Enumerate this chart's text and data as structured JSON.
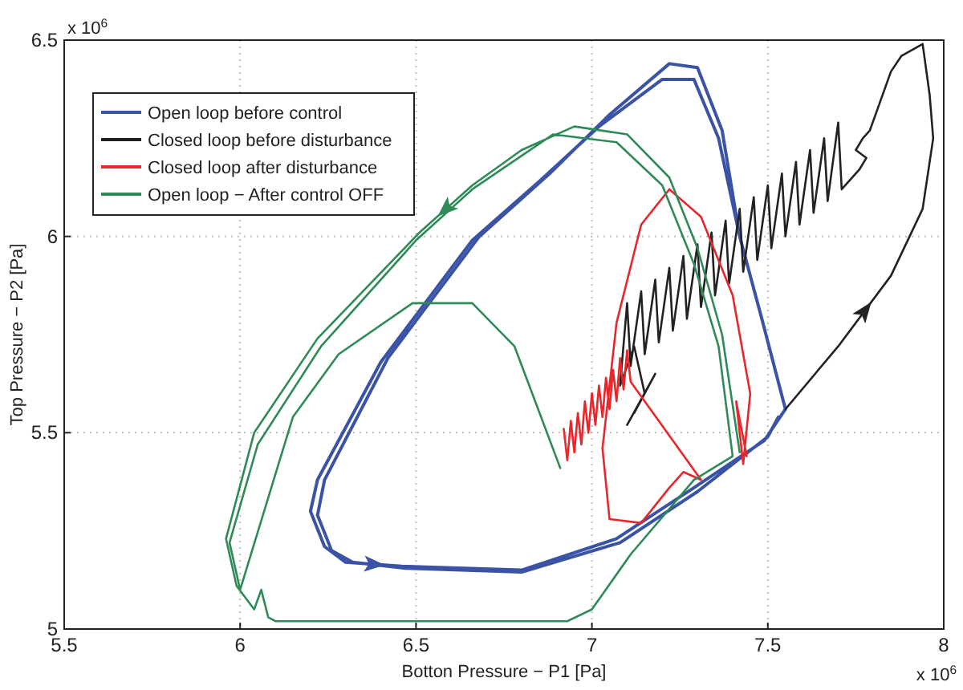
{
  "chart_data": {
    "type": "line",
    "xlabel": "Botton Pressure − P1 [Pa]",
    "ylabel": "Top Pressure − P2 [Pa]",
    "annotations": [
      "x 10$^{6}$",
      "x 10$^{6}$"
    ],
    "xlim": [
      5.5,
      8
    ],
    "xticks": [
      5.5,
      6,
      6.5,
      7,
      7.5,
      8
    ],
    "ylim": [
      5,
      6.5
    ],
    "yticks": [
      5,
      5.5,
      6,
      6.5
    ],
    "grid": true,
    "legend": "top left",
    "marker": "none",
    "line_style": "solid",
    "series": [
      {
        "name": "Open loop before control",
        "color": "#3a53a4",
        "x": [
          7.55,
          7.48,
          7.42,
          7.36,
          7.29,
          7.2,
          7.02,
          6.85,
          6.66,
          6.4,
          6.22,
          6.2,
          6.24,
          6.3,
          6.46,
          6.8,
          7.07,
          7.29,
          7.49,
          7.55,
          7.48,
          7.42,
          7.37,
          7.3,
          7.22,
          7.05,
          6.88,
          6.68,
          6.42,
          6.24,
          6.22,
          6.26,
          6.32,
          6.47,
          6.8,
          7.08,
          7.3,
          7.5,
          7.53
        ],
        "values": [
          5.56,
          5.8,
          6.0,
          6.25,
          6.4,
          6.4,
          6.28,
          6.14,
          5.99,
          5.68,
          5.38,
          5.3,
          5.21,
          5.17,
          5.16,
          5.15,
          5.23,
          5.36,
          5.48,
          5.56,
          5.8,
          6.0,
          6.27,
          6.43,
          6.44,
          6.31,
          6.16,
          6.0,
          5.69,
          5.38,
          5.29,
          5.2,
          5.17,
          5.155,
          5.145,
          5.22,
          5.35,
          5.49,
          5.54
        ]
      },
      {
        "name": "Closed loop before disturbance",
        "color": "#222222",
        "x": [
          7.55,
          7.7,
          7.85,
          7.94,
          7.97,
          7.96,
          7.94,
          7.88,
          7.85,
          7.81,
          7.79,
          7.77,
          7.75,
          7.78,
          7.76,
          7.71,
          7.7,
          7.67,
          7.66,
          7.63,
          7.62,
          7.59,
          7.58,
          7.55,
          7.54,
          7.51,
          7.5,
          7.47,
          7.46,
          7.43,
          7.42,
          7.39,
          7.38,
          7.35,
          7.34,
          7.31,
          7.3,
          7.27,
          7.26,
          7.23,
          7.22,
          7.19,
          7.18,
          7.15,
          7.14,
          7.11,
          7.1,
          7.08,
          7.12,
          7.15,
          7.1,
          7.18,
          7.12
        ],
        "values": [
          5.56,
          5.72,
          5.9,
          6.07,
          6.25,
          6.36,
          6.49,
          6.46,
          6.42,
          6.32,
          6.27,
          6.25,
          6.22,
          6.2,
          6.17,
          6.12,
          6.29,
          6.09,
          6.25,
          6.06,
          6.22,
          6.03,
          6.19,
          6.0,
          6.16,
          5.97,
          6.13,
          5.94,
          6.1,
          5.91,
          6.07,
          5.88,
          6.04,
          5.85,
          6.01,
          5.82,
          5.98,
          5.79,
          5.95,
          5.76,
          5.92,
          5.73,
          5.89,
          5.7,
          5.86,
          5.67,
          5.83,
          5.62,
          5.72,
          5.6,
          5.52,
          5.65,
          5.55
        ]
      },
      {
        "name": "Closed loop after disturbance",
        "color": "#e8262b",
        "x": [
          7.44,
          7.41,
          7.43,
          7.45,
          7.4,
          7.31,
          7.22,
          7.14,
          7.07,
          7.03,
          7.05,
          7.14,
          7.22,
          7.26,
          7.31,
          7.11,
          7.1,
          7.09,
          7.08,
          7.07,
          7.06,
          7.05,
          7.04,
          7.03,
          7.02,
          7.01,
          7.0,
          6.99,
          6.98,
          6.97,
          6.96,
          6.95,
          6.94,
          6.93,
          6.92
        ],
        "values": [
          5.44,
          5.58,
          5.42,
          5.6,
          5.85,
          6.05,
          6.12,
          6.03,
          5.78,
          5.46,
          5.28,
          5.27,
          5.36,
          5.4,
          5.38,
          5.63,
          5.71,
          5.61,
          5.69,
          5.58,
          5.66,
          5.56,
          5.64,
          5.54,
          5.62,
          5.52,
          5.6,
          5.5,
          5.58,
          5.47,
          5.55,
          5.45,
          5.53,
          5.43,
          5.51
        ]
      },
      {
        "name": "Open loop − After control OFF",
        "color": "#2e8b57",
        "x": [
          7.42,
          7.37,
          7.3,
          7.22,
          7.1,
          6.95,
          6.8,
          6.66,
          6.51,
          6.22,
          6.04,
          5.96,
          5.99,
          6.04,
          6.06,
          6.08,
          6.1,
          6.4,
          6.93,
          7.0,
          7.11,
          7.29,
          7.4,
          7.36,
          7.29,
          7.2,
          7.07,
          6.89,
          6.66,
          6.5,
          6.23,
          6.05,
          5.97,
          6.0,
          6.15,
          6.28,
          6.49,
          6.66,
          6.78,
          6.91
        ],
        "values": [
          5.45,
          5.75,
          5.97,
          6.15,
          6.26,
          6.28,
          6.22,
          6.13,
          6.01,
          5.74,
          5.5,
          5.23,
          5.11,
          5.05,
          5.1,
          5.03,
          5.02,
          5.02,
          5.02,
          5.05,
          5.19,
          5.38,
          5.44,
          5.72,
          5.93,
          6.13,
          6.24,
          6.26,
          6.12,
          5.99,
          5.72,
          5.47,
          5.22,
          5.1,
          5.54,
          5.7,
          5.83,
          5.83,
          5.72,
          5.41
        ]
      }
    ]
  }
}
